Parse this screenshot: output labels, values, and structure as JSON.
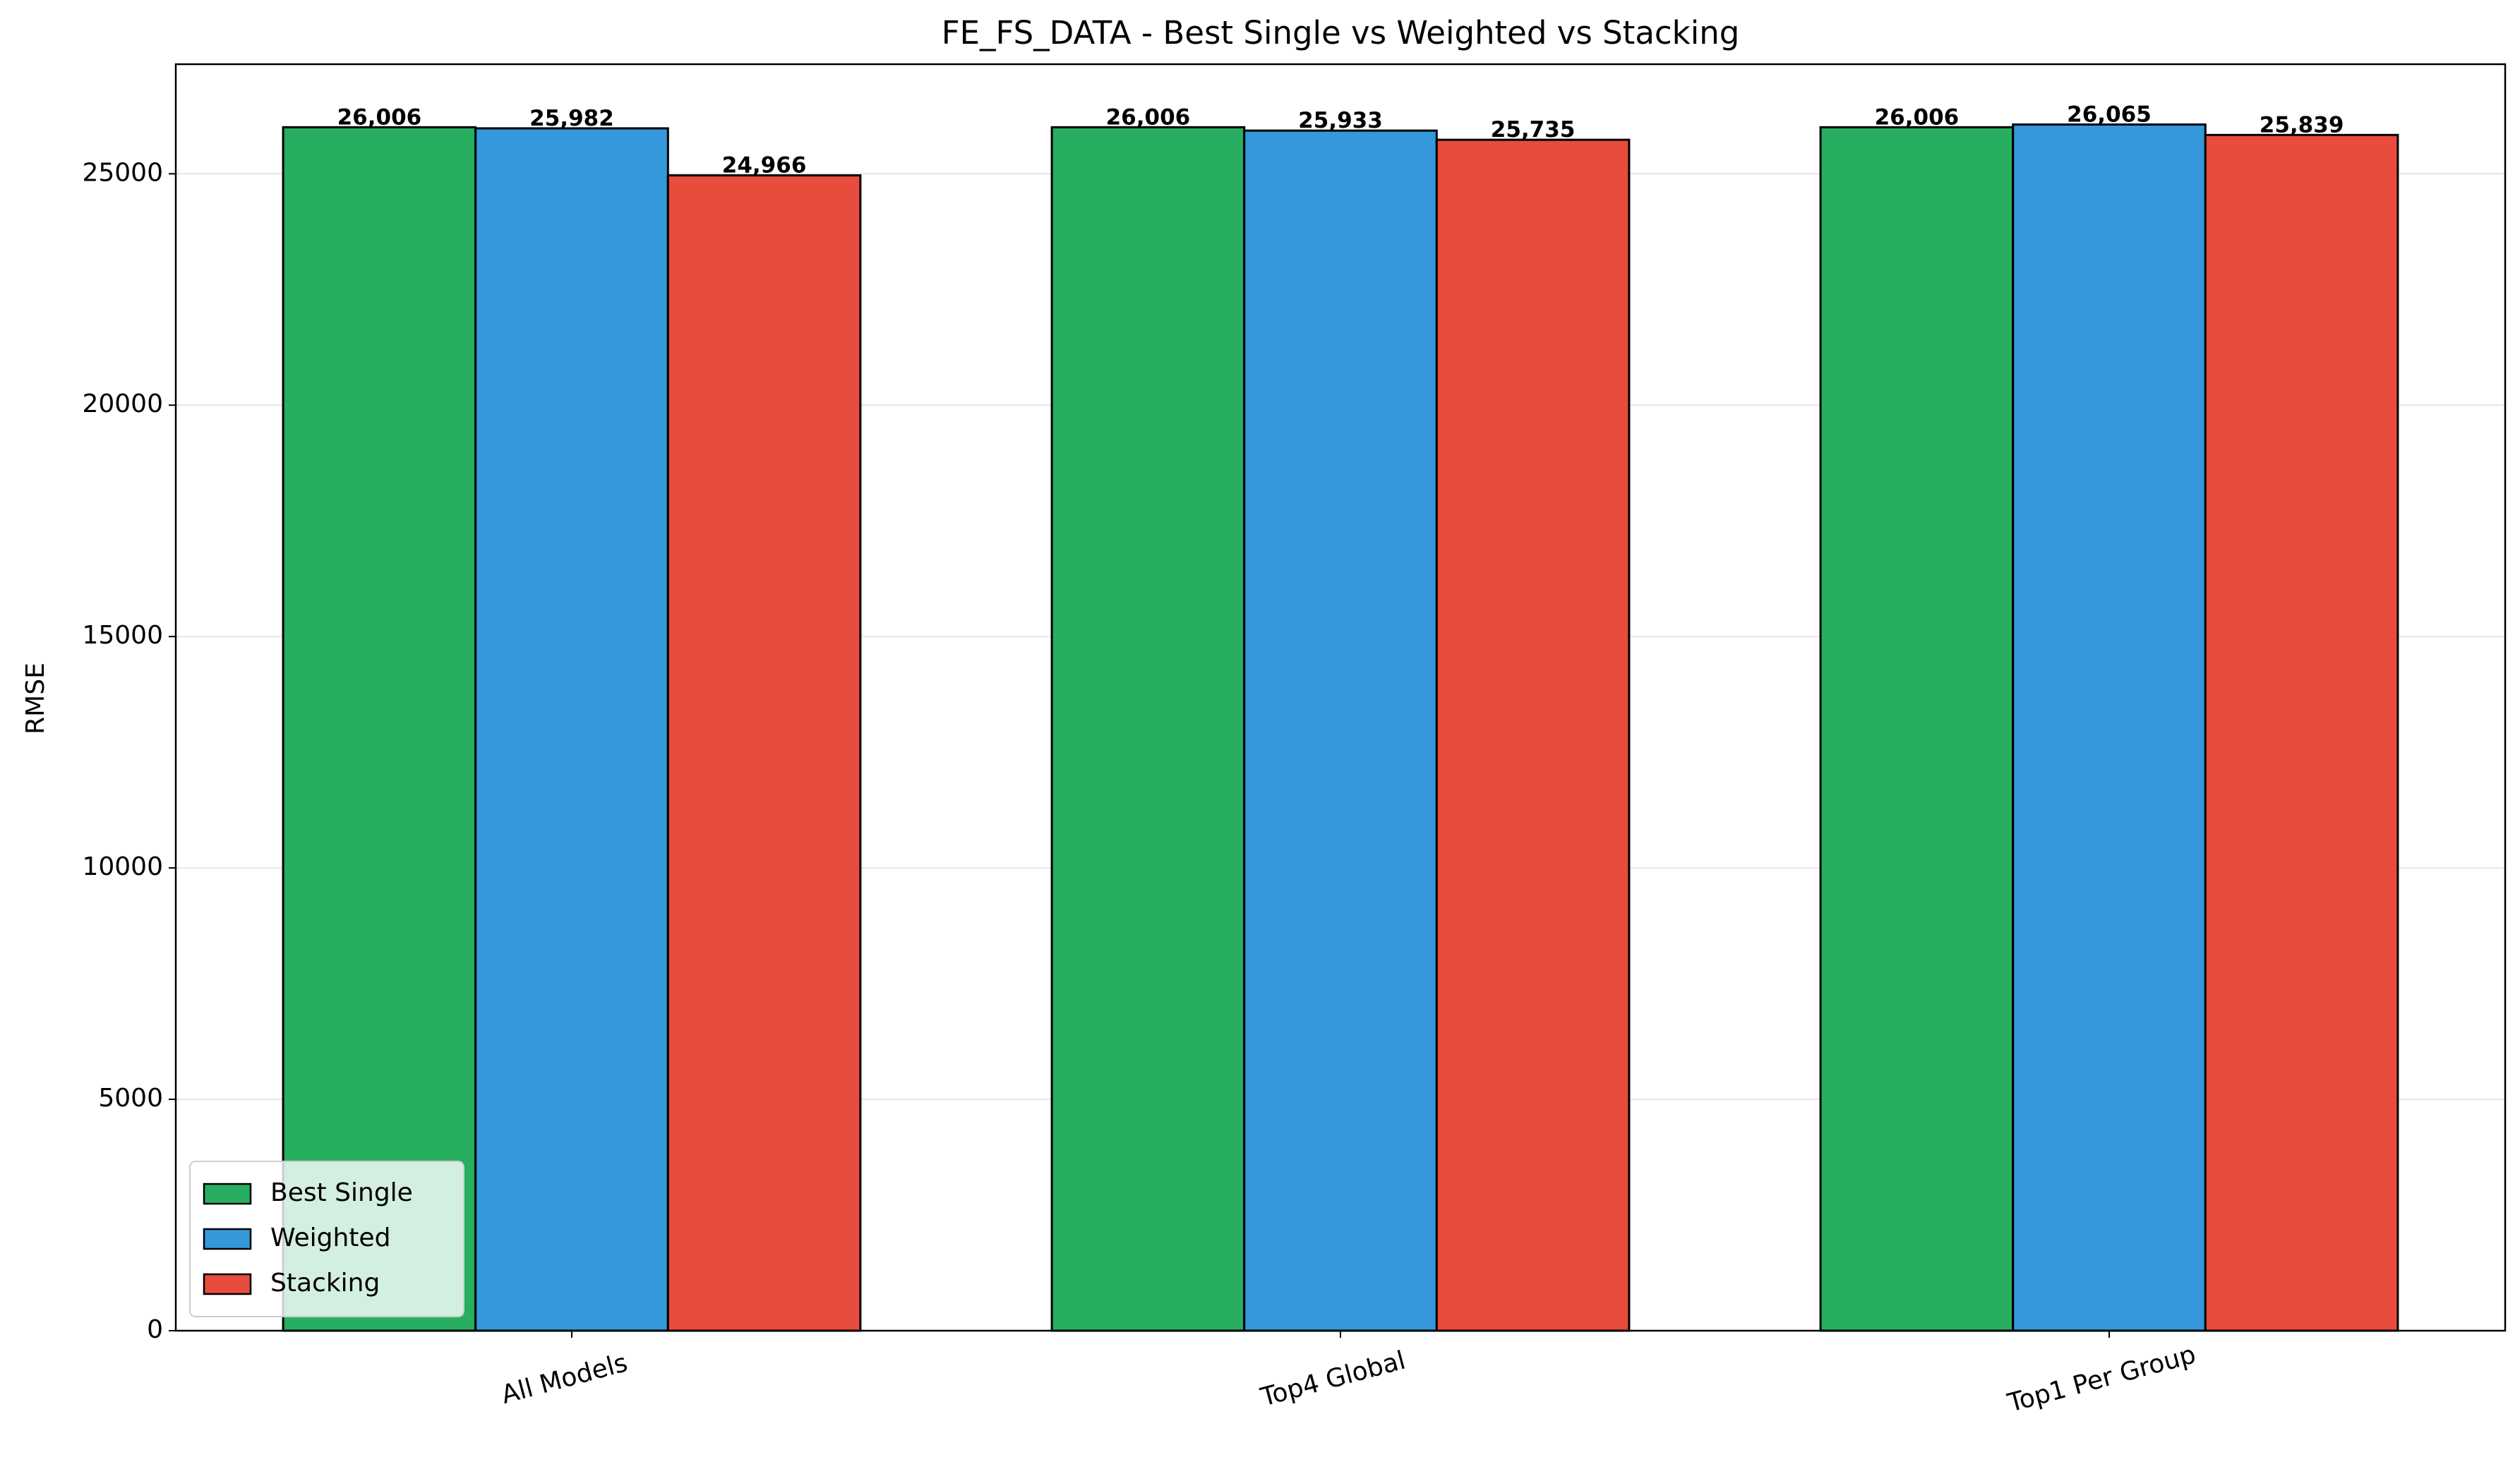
{
  "chart_data": {
    "type": "bar",
    "title": "FE_FS_DATA - Best Single vs Weighted vs Stacking",
    "y_label": "RMSE",
    "categories": [
      "All Models",
      "Top4 Global",
      "Top1 Per Group"
    ],
    "series": [
      {
        "name": "Best Single",
        "color": "#27ae60",
        "values": [
          26006,
          26006,
          26006
        ],
        "value_labels": [
          "26,006",
          "26,006",
          "26,006"
        ]
      },
      {
        "name": "Weighted",
        "color": "#3498db",
        "values": [
          25982,
          25933,
          26065
        ],
        "value_labels": [
          "25,982",
          "25,933",
          "26,065"
        ]
      },
      {
        "name": "Stacking",
        "color": "#e74c3c",
        "values": [
          24966,
          25735,
          25839
        ],
        "value_labels": [
          "24,966",
          "25,735",
          "25,839"
        ]
      }
    ],
    "ylim": [
      0,
      27368
    ],
    "yticks": [
      0,
      5000,
      10000,
      15000,
      20000,
      25000
    ],
    "grid": true,
    "legend": "lower left"
  }
}
